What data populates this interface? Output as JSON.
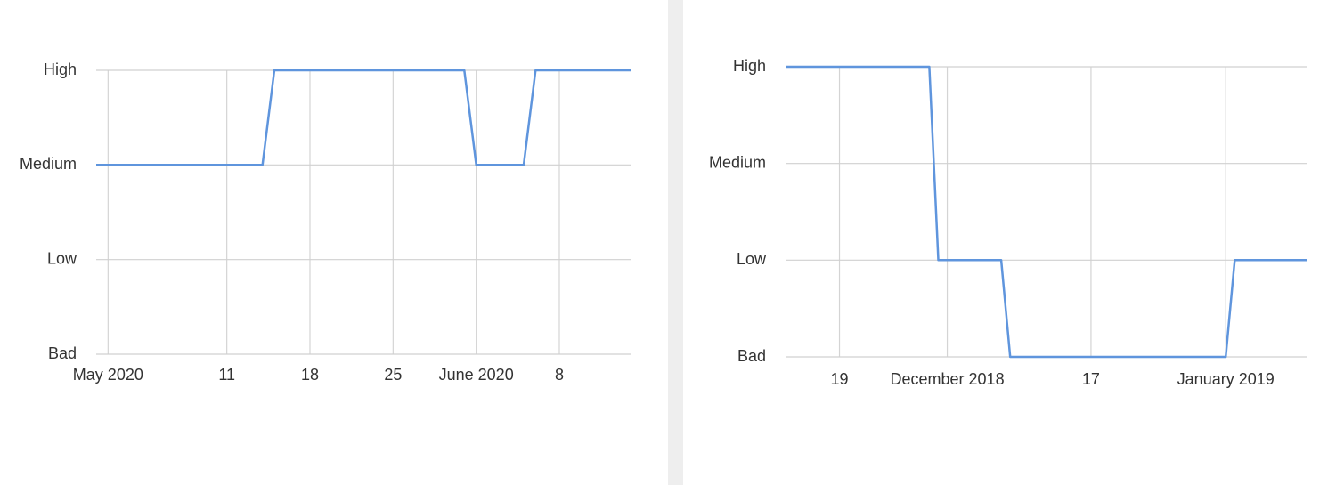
{
  "chart_data": [
    {
      "type": "line",
      "x": [
        "2020-04-30",
        "2020-05-14",
        "2020-05-15",
        "2020-05-31",
        "2020-06-01",
        "2020-06-05",
        "2020-06-06",
        "2020-06-14"
      ],
      "values": [
        2,
        2,
        3,
        3,
        2,
        2,
        3,
        3
      ],
      "color": "#5f95dd",
      "xlim": [
        "2020-04-30",
        "2020-06-14"
      ],
      "xticks": [
        {
          "value": "2020-05-01",
          "label": "May 2020"
        },
        {
          "value": "2020-05-11",
          "label": "11"
        },
        {
          "value": "2020-05-18",
          "label": "18"
        },
        {
          "value": "2020-05-25",
          "label": "25"
        },
        {
          "value": "2020-06-01",
          "label": "June 2020"
        },
        {
          "value": "2020-06-08",
          "label": "8"
        }
      ],
      "ylim": [
        0,
        3
      ],
      "yticks": [
        {
          "value": 0,
          "label": "Bad"
        },
        {
          "value": 1,
          "label": "Low"
        },
        {
          "value": 2,
          "label": "Medium"
        },
        {
          "value": 3,
          "label": "High"
        }
      ],
      "grid": true
    },
    {
      "type": "line",
      "x": [
        "2018-11-13",
        "2018-11-29",
        "2018-11-30",
        "2018-12-07",
        "2018-12-08",
        "2019-01-01",
        "2019-01-02",
        "2019-01-10"
      ],
      "values": [
        3,
        3,
        1,
        1,
        0,
        0,
        1,
        1
      ],
      "color": "#5f95dd",
      "xlim": [
        "2018-11-13",
        "2019-01-10"
      ],
      "xticks": [
        {
          "value": "2018-11-19",
          "label": "19"
        },
        {
          "value": "2018-12-01",
          "label": "December 2018"
        },
        {
          "value": "2018-12-17",
          "label": "17"
        },
        {
          "value": "2019-01-01",
          "label": "January 2019"
        }
      ],
      "ylim": [
        0,
        3
      ],
      "yticks": [
        {
          "value": 0,
          "label": "Bad"
        },
        {
          "value": 1,
          "label": "Low"
        },
        {
          "value": 2,
          "label": "Medium"
        },
        {
          "value": 3,
          "label": "High"
        }
      ],
      "grid": true
    }
  ]
}
